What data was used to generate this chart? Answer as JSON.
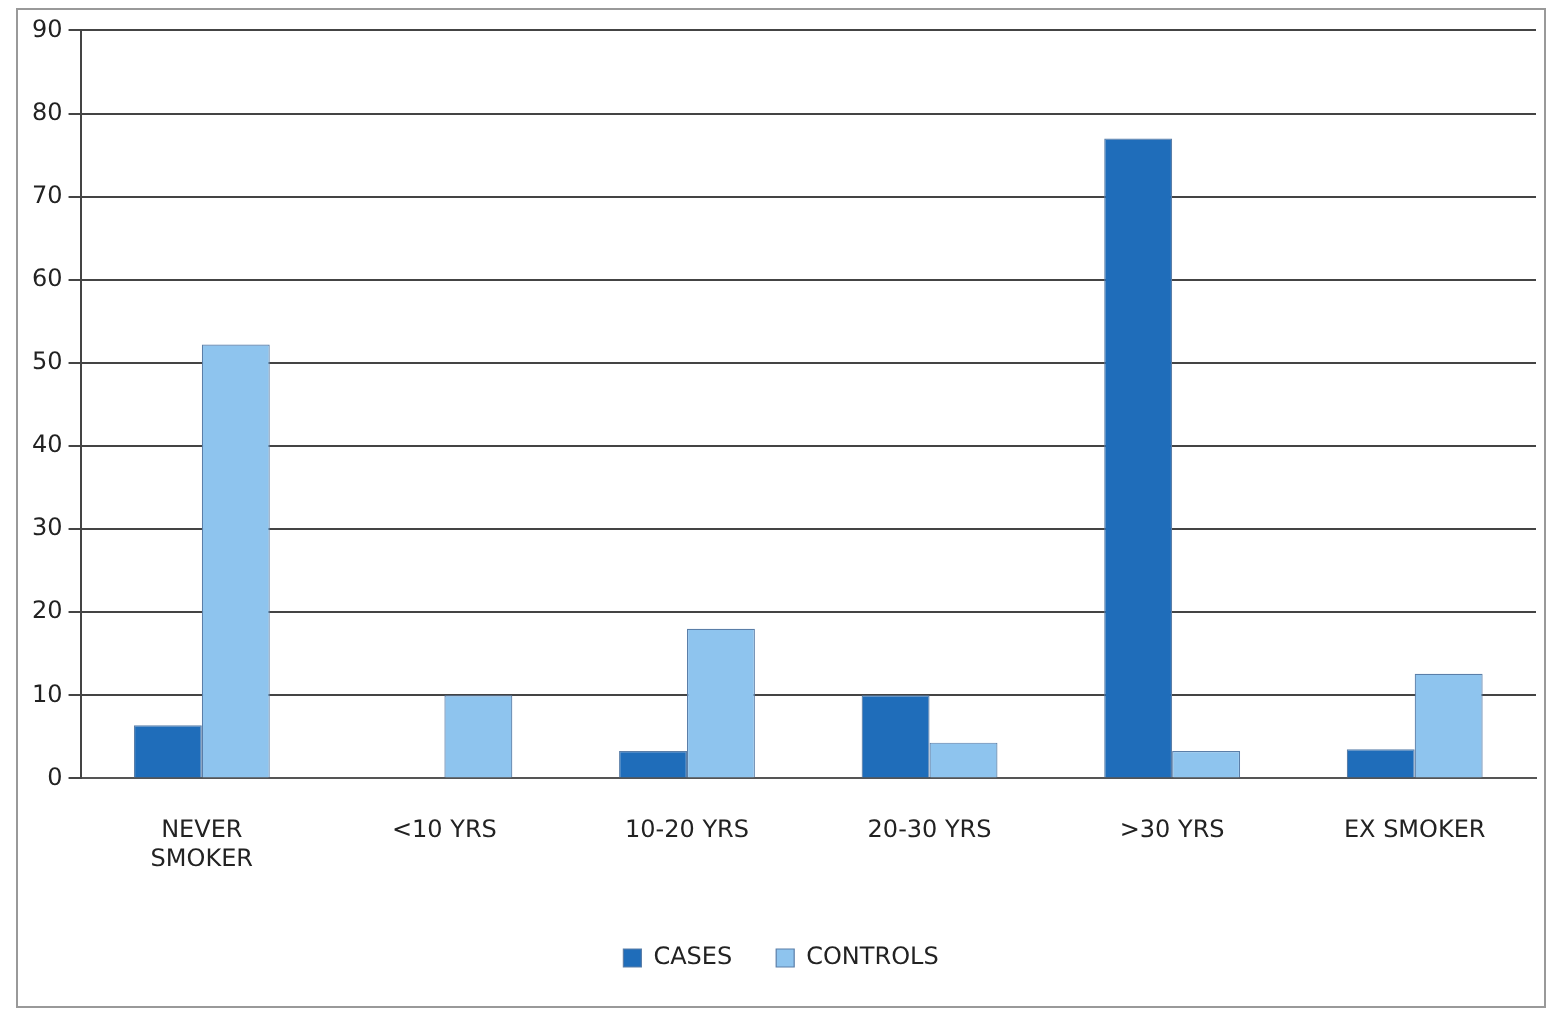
{
  "chart_data": {
    "type": "bar",
    "categories": [
      "NEVER\nSMOKER",
      "<10 YRS",
      "10-20 YRS",
      "20-30 YRS",
      ">30 YRS",
      "EX SMOKER"
    ],
    "series": [
      {
        "name": "CASES",
        "color": "#1f6dba",
        "values": [
          6.4,
          0,
          3.3,
          10,
          77,
          3.5
        ]
      },
      {
        "name": "CONTROLS",
        "color": "#8ec4ee",
        "values": [
          52.2,
          10,
          18,
          4.3,
          3.3,
          12.6
        ]
      }
    ],
    "ylim": [
      0,
      90
    ],
    "yticks": [
      0,
      10,
      20,
      30,
      40,
      50,
      60,
      70,
      80,
      90
    ],
    "grid": "y",
    "legend": "bottom"
  }
}
